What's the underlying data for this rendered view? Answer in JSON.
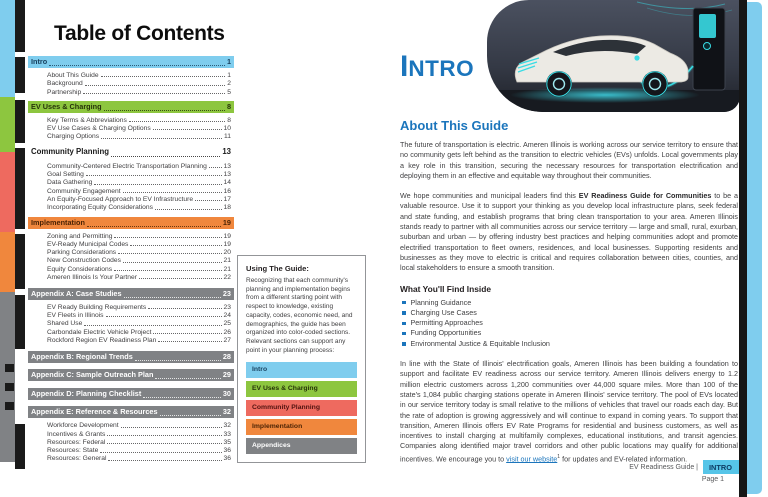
{
  "toc": {
    "title": "Table of Contents",
    "sections": [
      {
        "label": "Intro",
        "page": "1",
        "style": "blue",
        "items": [
          [
            "About This Guide",
            "1"
          ],
          [
            "Background",
            "2"
          ],
          [
            "Partnership",
            "5"
          ]
        ]
      },
      {
        "label": "EV Uses & Charging",
        "page": "8",
        "style": "green",
        "items": [
          [
            "Key Terms & Abbreviations",
            "8"
          ],
          [
            "EV Use Cases & Charging Options",
            "10"
          ],
          [
            "Charging Options",
            "11"
          ]
        ]
      },
      {
        "label": "Community Planning",
        "page": "13",
        "style": "plain",
        "items": [
          [
            "Community-Centered Electric Transportation Planning",
            "13"
          ],
          [
            "Goal Setting",
            "13"
          ],
          [
            "Data Gathering",
            "14"
          ],
          [
            "Community Engagement",
            "16"
          ],
          [
            "An Equity-Focused Approach to EV Infrastructure",
            "17"
          ],
          [
            "Incorporating Equity Considerations",
            "18"
          ]
        ]
      },
      {
        "label": "Implementation",
        "page": "19",
        "style": "orange",
        "items": [
          [
            "Zoning and Permitting",
            "19"
          ],
          [
            "EV-Ready Municipal Codes",
            "19"
          ],
          [
            "Parking Considerations",
            "20"
          ],
          [
            "New Construction Codes",
            "21"
          ],
          [
            "Equity Considerations",
            "21"
          ],
          [
            "Ameren Illinois Is Your Partner",
            "22"
          ]
        ]
      },
      {
        "label": "Appendix A: Case Studies",
        "page": "23",
        "style": "gray",
        "items": [
          [
            "EV Ready Building Requirements",
            "23"
          ],
          [
            "EV Fleets in Illinois",
            "24"
          ],
          [
            "Shared Use",
            "25"
          ],
          [
            "Carbondale Electric Vehicle Project",
            "26"
          ],
          [
            "Rockford Region EV Readiness Plan",
            "27"
          ]
        ]
      },
      {
        "label": "Appendix B: Regional Trends",
        "page": "28",
        "style": "gray",
        "items": []
      },
      {
        "label": "Appendix C: Sample Outreach Plan",
        "page": "29",
        "style": "gray",
        "items": []
      },
      {
        "label": "Appendix D: Planning Checklist",
        "page": "30",
        "style": "gray",
        "items": []
      },
      {
        "label": "Appendix E: Reference & Resources",
        "page": "32",
        "style": "gray",
        "items": [
          [
            "Workforce Development",
            "32"
          ],
          [
            "Incentives & Grants",
            "33"
          ],
          [
            "Resources: Federal",
            "35"
          ],
          [
            "Resources: State",
            "36"
          ],
          [
            "Resources: General",
            "36"
          ]
        ]
      }
    ]
  },
  "using_guide": {
    "title": "Using The Guide:",
    "body": "Recognizing that each community's planning and implementation begins from a different starting point with respect to knowledge, existing capacity, codes, economic need, and demographics, the guide has been organized into color-coded sections. Relevant sections can support any point in your planning process:",
    "legend": [
      {
        "label": "Intro",
        "style": "blue"
      },
      {
        "label": "EV Uses & Charging",
        "style": "green"
      },
      {
        "label": "Community Planning",
        "style": "red"
      },
      {
        "label": "Implementation",
        "style": "orange"
      },
      {
        "label": "Appendices",
        "style": "gray"
      }
    ]
  },
  "intro_page": {
    "heading_initial": "I",
    "heading_rest": "NTRO",
    "about_title": "About This Guide",
    "p1": "The future of transportation is electric. Ameren Illinois is working across our service territory to ensure that no community gets left behind as the transition to electric vehicles (EVs) unfolds. Local governments play a key role in this transition, securing the necessary resources for transportation electrification and deploying them in an effective and equitable way throughout their communities.",
    "p2_pre": "We hope communities and municipal leaders find this ",
    "p2_bold": "EV Readiness Guide for Communities",
    "p2_post": " to be a valuable resource. Use it to support your thinking as you develop local infrastructure plans, seek federal and state funding, and establish programs that bring clean transportation to your area. Ameren Illinois stands ready to partner with all communities across our service territory — large and small, rural, exurban, suburban and urban — by offering industry best practices and helping communities adopt and promote electrified transportation to fleet owners, residences, and local businesses. Supporting residents and businesses as they move to electric is critical and requires collaboration between cities, counties, and local stakeholders to ensure a smooth transition.",
    "find_inside_title": "What You'll Find Inside",
    "bullets": [
      "Planning Guidance",
      "Charging Use Cases",
      "Permitting Approaches",
      "Funding Opportunities",
      "Environmental Justice & Equitable Inclusion"
    ],
    "p3_pre": "In line with the State of Illinois' electrification goals, Ameren Illinois has been building a foundation to support and facilitate EV readiness across our service territory. Ameren Illinois delivers energy to 1.2 million electric customers across 1,200 communities over 44,000 square miles. More than 100 of the state's 1,084 public charging stations operate in Ameren Illinois' service territory. The pool of EVs located in our service territory today is small relative to the millions of vehicles that travel our roads each day. But the rate of adoption is growing aggressively and will continue to expand in coming years. To support that transition, Ameren Illinois offers EV Rate Programs for residential and business customers, as well as incentives to install charging at multifamily complexes, educational institutions, and transit agencies. Companies along identified major travel corridors and other public locations may qualify for additional incentives. We encourage you to ",
    "p3_link": "visit our website",
    "p3_sup": "1",
    "p3_post": " for updates and EV-related information.",
    "footer_left": "EV Readiness Guide |",
    "footer_tag": "INTRO",
    "footer_page": "Page 1"
  },
  "colors": {
    "section_blue": "#7FCDEE",
    "section_green": "#8DC63F",
    "section_red": "#EE6A5F",
    "section_orange": "#F0873D",
    "section_gray": "#808285",
    "brand_blue": "#1B75BC",
    "footer_tag_blue": "#56C5E8",
    "body_text": "#414042"
  }
}
